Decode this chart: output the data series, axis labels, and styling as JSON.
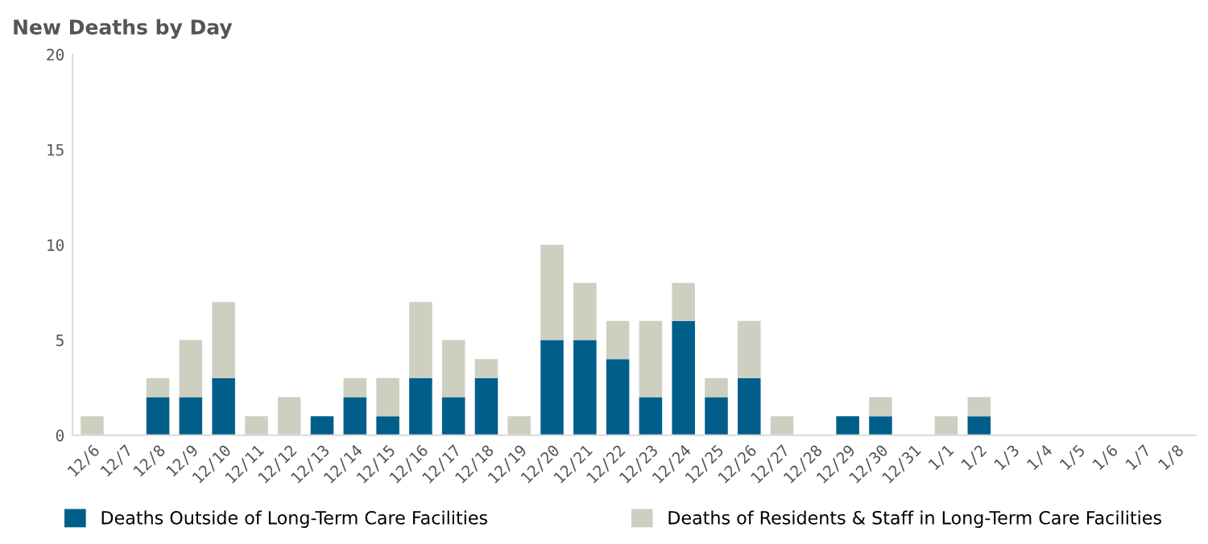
{
  "chart_data": {
    "type": "bar",
    "title": "New Deaths by Day",
    "stacked": true,
    "legend": "bottom",
    "grid": false,
    "categories": [
      "12/6",
      "12/7",
      "12/8",
      "12/9",
      "12/10",
      "12/11",
      "12/12",
      "12/13",
      "12/14",
      "12/15",
      "12/16",
      "12/17",
      "12/18",
      "12/19",
      "12/20",
      "12/21",
      "12/22",
      "12/23",
      "12/24",
      "12/25",
      "12/26",
      "12/27",
      "12/28",
      "12/29",
      "12/30",
      "12/31",
      "1/1",
      "1/2",
      "1/3",
      "1/4",
      "1/5",
      "1/6",
      "1/7",
      "1/8"
    ],
    "series": [
      {
        "name": "Deaths Outside of Long-Term Care Facilities",
        "color": "#005f8a",
        "values": [
          0,
          0,
          2,
          2,
          3,
          0,
          0,
          1,
          2,
          1,
          3,
          2,
          3,
          0,
          5,
          5,
          4,
          2,
          6,
          2,
          3,
          0,
          0,
          1,
          1,
          0,
          0,
          1,
          0,
          0,
          0,
          0,
          0,
          0
        ]
      },
      {
        "name": "Deaths of Residents & Staff in Long-Term Care Facilities",
        "color": "#cdd0c0",
        "values": [
          1,
          0,
          1,
          3,
          4,
          1,
          2,
          0,
          1,
          2,
          4,
          3,
          1,
          1,
          5,
          3,
          2,
          4,
          2,
          1,
          3,
          1,
          0,
          0,
          1,
          0,
          1,
          1,
          0,
          0,
          0,
          0,
          0,
          0
        ]
      }
    ],
    "ylim": [
      0,
      20
    ],
    "yticks": [
      0,
      5,
      10,
      15,
      20
    ]
  }
}
